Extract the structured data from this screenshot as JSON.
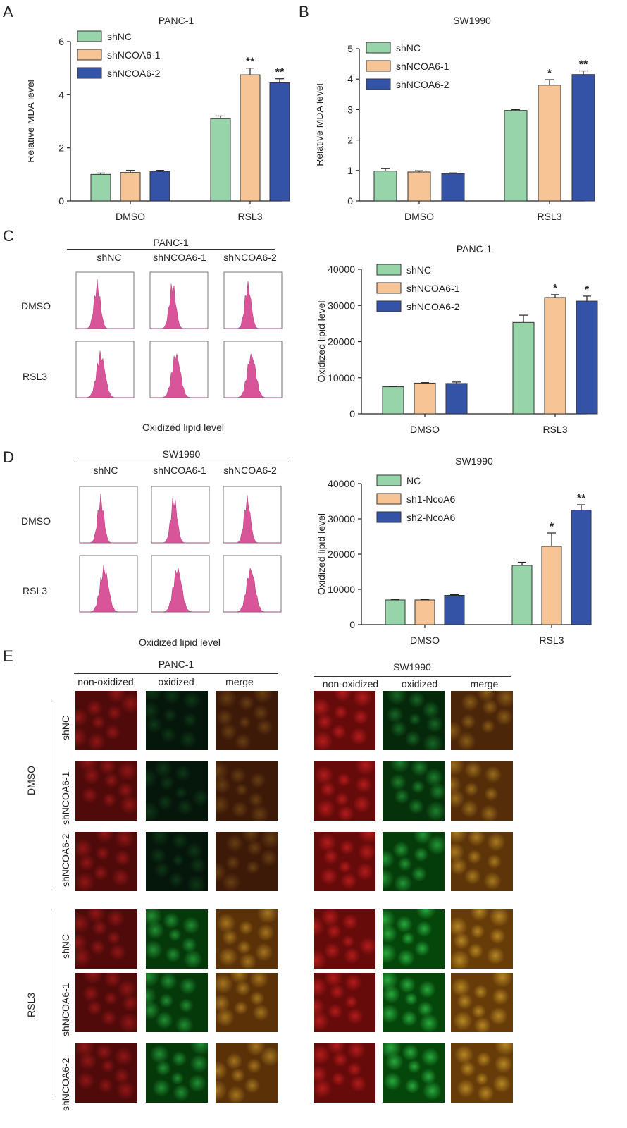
{
  "panels": {
    "A": "A",
    "B": "B",
    "C": "C",
    "D": "D",
    "E": "E"
  },
  "colors": {
    "green": "#98d4a9",
    "peach": "#f7c595",
    "blue": "#3452a6",
    "histogram": "#d9559a"
  },
  "chart_data": [
    {
      "type": "bar",
      "title": "PANC-1",
      "ylabel": "Relative MDA level",
      "ylim": [
        0,
        6
      ],
      "yticks": [
        "0",
        "2",
        "4",
        "6"
      ],
      "categories": [
        "DMSO",
        "RSL3"
      ],
      "series": [
        {
          "name": "shNC",
          "color": "#98d4a9",
          "values": [
            1.0,
            3.1
          ],
          "errors": [
            0.05,
            0.1
          ],
          "sig": [
            "",
            ""
          ]
        },
        {
          "name": "shNCOA6-1",
          "color": "#f7c595",
          "values": [
            1.07,
            4.75
          ],
          "errors": [
            0.08,
            0.25
          ],
          "sig": [
            "",
            "**"
          ]
        },
        {
          "name": "shNCOA6-2",
          "color": "#3452a6",
          "values": [
            1.1,
            4.45
          ],
          "errors": [
            0.05,
            0.15
          ],
          "sig": [
            "",
            "**"
          ]
        }
      ]
    },
    {
      "type": "bar",
      "title": "SW1990",
      "ylabel": "Relative MDA level",
      "ylim": [
        0,
        5
      ],
      "yticks": [
        "0",
        "1",
        "2",
        "3",
        "4",
        "5"
      ],
      "categories": [
        "DMSO",
        "RSL3"
      ],
      "series": [
        {
          "name": "shNC",
          "color": "#98d4a9",
          "values": [
            0.98,
            2.97
          ],
          "errors": [
            0.08,
            0.03
          ],
          "sig": [
            "",
            ""
          ]
        },
        {
          "name": "shNCOA6-1",
          "color": "#f7c595",
          "values": [
            0.95,
            3.8
          ],
          "errors": [
            0.04,
            0.18
          ],
          "sig": [
            "",
            "*"
          ]
        },
        {
          "name": "shNCOA6-2",
          "color": "#3452a6",
          "values": [
            0.9,
            4.15
          ],
          "errors": [
            0.02,
            0.12
          ],
          "sig": [
            "",
            "**"
          ]
        }
      ]
    },
    {
      "type": "bar",
      "title": "PANC-1",
      "ylabel": "Oxidized lipid level",
      "ylim": [
        0,
        40000
      ],
      "yticks": [
        "0",
        "10000",
        "20000",
        "30000",
        "40000"
      ],
      "categories": [
        "DMSO",
        "RSL3"
      ],
      "series": [
        {
          "name": "shNC",
          "color": "#98d4a9",
          "values": [
            7500,
            25300
          ],
          "errors": [
            100,
            2000
          ],
          "sig": [
            "",
            ""
          ]
        },
        {
          "name": "shNCOA6-1",
          "color": "#f7c595",
          "values": [
            8500,
            32200
          ],
          "errors": [
            150,
            800
          ],
          "sig": [
            "",
            "*"
          ]
        },
        {
          "name": "shNCOA6-2",
          "color": "#3452a6",
          "values": [
            8400,
            31200
          ],
          "errors": [
            400,
            1400
          ],
          "sig": [
            "",
            "*"
          ]
        }
      ]
    },
    {
      "type": "bar",
      "title": "SW1990",
      "ylabel": "Oxidized lipid level",
      "ylim": [
        0,
        40000
      ],
      "yticks": [
        "0",
        "10000",
        "20000",
        "30000",
        "40000"
      ],
      "categories": [
        "DMSO",
        "RSL3"
      ],
      "series": [
        {
          "name": "NC",
          "color": "#98d4a9",
          "values": [
            7000,
            16800
          ],
          "errors": [
            100,
            900
          ],
          "sig": [
            "",
            ""
          ]
        },
        {
          "name": "sh1-NcoA6",
          "color": "#f7c595",
          "values": [
            7000,
            22200
          ],
          "errors": [
            100,
            3800
          ],
          "sig": [
            "",
            "*"
          ]
        },
        {
          "name": "sh2-NcoA6",
          "color": "#3452a6",
          "values": [
            8300,
            32500
          ],
          "errors": [
            200,
            1500
          ],
          "sig": [
            "",
            "**"
          ]
        }
      ]
    }
  ],
  "flow": {
    "C": {
      "header": "PANC-1",
      "columns": [
        "shNC",
        "shNCOA6-1",
        "shNCOA6-2"
      ],
      "rows": [
        "DMSO",
        "RSL3"
      ],
      "xlabel": "Oxidized lipid level"
    },
    "D": {
      "header": "SW1990",
      "columns": [
        "shNC",
        "shNCOA6-1",
        "shNCOA6-2"
      ],
      "rows": [
        "DMSO",
        "RSL3"
      ],
      "xlabel": "Oxidized lipid level"
    }
  },
  "micro": {
    "left_header": "PANC-1",
    "right_header": "SW1990",
    "columns": [
      "non-oxidized",
      "oxidized",
      "merge"
    ],
    "groups": [
      "DMSO",
      "RSL3"
    ],
    "rows": [
      "shNC",
      "shNCOA6-1",
      "shNCOA6-2"
    ]
  }
}
